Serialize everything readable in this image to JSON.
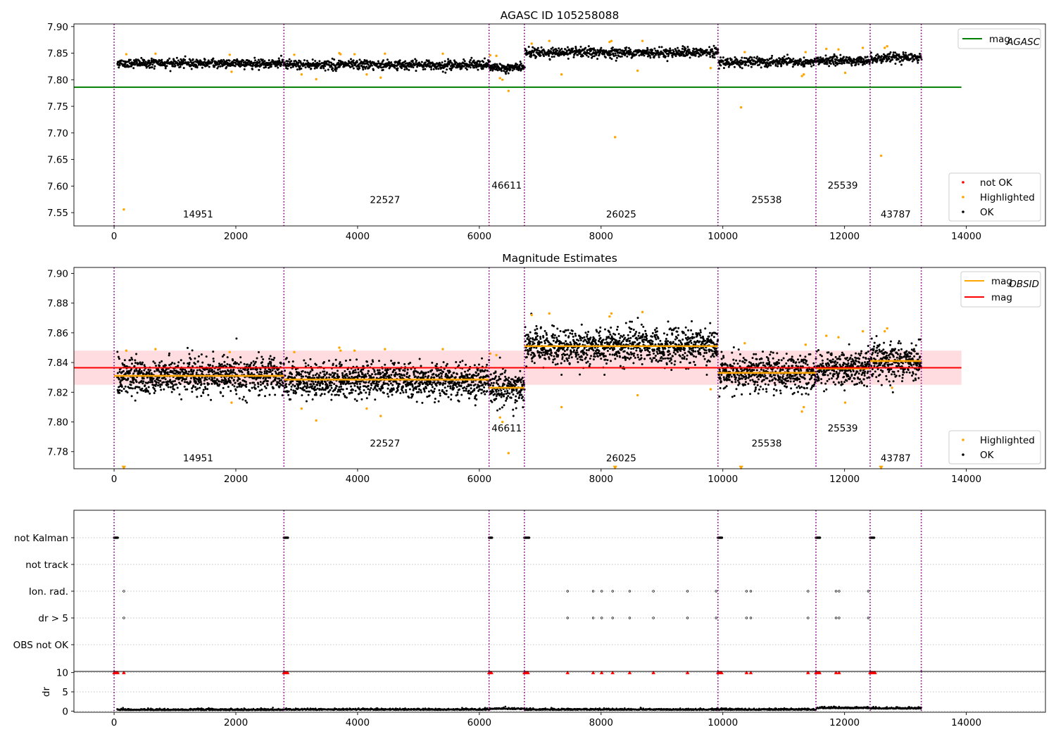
{
  "chart_data": [
    {
      "type": "scatter",
      "title": "AGASC ID 105258088",
      "xlabel": "",
      "ylabel": "",
      "xlim": [
        -660,
        15300
      ],
      "ylim": [
        7.525,
        7.905
      ],
      "xticks": [
        0,
        2000,
        4000,
        6000,
        8000,
        10000,
        12000,
        14000
      ],
      "yticks": [
        7.55,
        7.6,
        7.65,
        7.7,
        7.75,
        7.8,
        7.85,
        7.9
      ],
      "ytick_labels": [
        "7.55",
        "7.60",
        "7.65",
        "7.70",
        "7.75",
        "7.80",
        "7.85",
        "7.90"
      ],
      "obs_boundaries": [
        0,
        2790,
        6160,
        6740,
        9920,
        11530,
        12420,
        13260
      ],
      "obsids": [
        {
          "label": "14951",
          "x": 1380,
          "y": 7.541
        },
        {
          "label": "22527",
          "x": 4450,
          "y": 7.568
        },
        {
          "label": "46611",
          "x": 6450,
          "y": 7.595
        },
        {
          "label": "26025",
          "x": 8330,
          "y": 7.541
        },
        {
          "label": "25538",
          "x": 10720,
          "y": 7.568
        },
        {
          "label": "25539",
          "x": 11970,
          "y": 7.595
        },
        {
          "label": "43787",
          "x": 12840,
          "y": 7.541
        }
      ],
      "series": [
        {
          "name": "mag_AGASC",
          "kind": "line",
          "color": "#008000",
          "x": [
            -660,
            13920
          ],
          "y": [
            7.786,
            7.786
          ]
        },
        {
          "name": "OK",
          "kind": "points",
          "color": "#000000",
          "segments": [
            {
              "x0": 50,
              "x1": 2790,
              "level": 7.831
            },
            {
              "x0": 2800,
              "x1": 6160,
              "level": 7.828
            },
            {
              "x0": 6170,
              "x1": 6740,
              "level": 7.823
            },
            {
              "x0": 6750,
              "x1": 9920,
              "level": 7.851
            },
            {
              "x0": 9930,
              "x1": 11530,
              "level": 7.833
            },
            {
              "x0": 11540,
              "x1": 12420,
              "level": 7.836
            },
            {
              "x0": 12430,
              "x1": 13260,
              "level": 7.841
            }
          ]
        },
        {
          "name": "Highlighted",
          "kind": "points",
          "color": "#ffa500",
          "x": [
            160,
            200,
            680,
            1900,
            1930,
            2960,
            3080,
            3320,
            3700,
            3720,
            3950,
            4150,
            4380,
            4450,
            5400,
            6180,
            6280,
            6340,
            6380,
            6480,
            6860,
            7150,
            7350,
            8140,
            8170,
            8230,
            8600,
            8680,
            9800,
            10300,
            10360,
            11300,
            11330,
            11360,
            11700,
            11900,
            12010,
            12300,
            12600,
            12660,
            12700
          ],
          "y": [
            7.556,
            7.848,
            7.849,
            7.847,
            7.815,
            7.847,
            7.81,
            7.801,
            7.85,
            7.848,
            7.848,
            7.81,
            7.804,
            7.849,
            7.849,
            7.846,
            7.845,
            7.803,
            7.8,
            7.779,
            7.868,
            7.873,
            7.81,
            7.871,
            7.873,
            7.692,
            7.817,
            7.873,
            7.822,
            7.748,
            7.852,
            7.807,
            7.81,
            7.852,
            7.858,
            7.857,
            7.813,
            7.86,
            7.657,
            7.86,
            7.863
          ]
        },
        {
          "name": "not OK",
          "kind": "points",
          "color": "#ff0000",
          "x": [],
          "y": []
        }
      ],
      "legends": [
        {
          "entries": [
            {
              "marker": "line",
              "color": "#008000",
              "label": "mag",
              "sub": "AGASC"
            }
          ],
          "loc": "upper right"
        },
        {
          "entries": [
            {
              "marker": "dot",
              "color": "#ff0000",
              "label": "not OK"
            },
            {
              "marker": "dot",
              "color": "#ffa500",
              "label": "Highlighted"
            },
            {
              "marker": "dot",
              "color": "#000000",
              "label": "OK"
            }
          ],
          "loc": "lower right"
        }
      ]
    },
    {
      "type": "scatter",
      "title": "Magnitude Estimates",
      "xlabel": "",
      "ylabel": "",
      "xlim": [
        -660,
        15300
      ],
      "ylim": [
        7.7685,
        7.904
      ],
      "xticks": [
        0,
        2000,
        4000,
        6000,
        8000,
        10000,
        12000,
        14000
      ],
      "yticks": [
        7.78,
        7.8,
        7.82,
        7.84,
        7.86,
        7.88,
        7.9
      ],
      "ytick_labels": [
        "7.78",
        "7.80",
        "7.82",
        "7.84",
        "7.86",
        "7.88",
        "7.90"
      ],
      "obs_boundaries": [
        0,
        2790,
        6160,
        6740,
        9920,
        11530,
        12420,
        13260
      ],
      "obsids": [
        {
          "label": "14951",
          "x": 1380,
          "y": 7.7735
        },
        {
          "label": "22527",
          "x": 4450,
          "y": 7.7835
        },
        {
          "label": "46611",
          "x": 6450,
          "y": 7.7935
        },
        {
          "label": "26025",
          "x": 8330,
          "y": 7.7735
        },
        {
          "label": "25538",
          "x": 10720,
          "y": 7.7835
        },
        {
          "label": "25539",
          "x": 11970,
          "y": 7.7935
        },
        {
          "label": "43787",
          "x": 12840,
          "y": 7.7735
        }
      ],
      "mag_band": {
        "color": "#ffc0c5",
        "y0": 7.825,
        "y1": 7.848,
        "x0": -660,
        "x1": 13920
      },
      "series": [
        {
          "name": "mag",
          "kind": "line",
          "color": "#ff0000",
          "x": [
            -660,
            13920
          ],
          "y": [
            7.8365,
            7.8365
          ]
        },
        {
          "name": "mag_OBSID",
          "kind": "steps",
          "color": "#ffa500",
          "segments": [
            {
              "x0": 0,
              "x1": 2790,
              "y": 7.831
            },
            {
              "x0": 2790,
              "x1": 6160,
              "y": 7.8285
            },
            {
              "x0": 6160,
              "x1": 6740,
              "y": 7.823
            },
            {
              "x0": 6740,
              "x1": 9920,
              "y": 7.851
            },
            {
              "x0": 9920,
              "x1": 11530,
              "y": 7.833
            },
            {
              "x0": 11530,
              "x1": 12420,
              "y": 7.836
            },
            {
              "x0": 12420,
              "x1": 13260,
              "y": 7.841
            }
          ]
        },
        {
          "name": "OK",
          "kind": "points",
          "color": "#000000",
          "segments": [
            {
              "x0": 50,
              "x1": 2790,
              "level": 7.831
            },
            {
              "x0": 2800,
              "x1": 6160,
              "level": 7.828
            },
            {
              "x0": 6170,
              "x1": 6740,
              "level": 7.823
            },
            {
              "x0": 6750,
              "x1": 9920,
              "level": 7.851
            },
            {
              "x0": 9930,
              "x1": 11530,
              "level": 7.833
            },
            {
              "x0": 11540,
              "x1": 12420,
              "level": 7.836
            },
            {
              "x0": 12430,
              "x1": 13260,
              "level": 7.841
            }
          ]
        },
        {
          "name": "Highlighted",
          "kind": "points",
          "color": "#ffa500",
          "x": [
            200,
            680,
            1900,
            1930,
            2960,
            3080,
            3320,
            3700,
            3720,
            3950,
            4150,
            4380,
            4450,
            5400,
            6180,
            6280,
            6340,
            6380,
            6480,
            6860,
            7150,
            7350,
            8140,
            8170,
            8600,
            8680,
            9800,
            10360,
            11300,
            11330,
            11360,
            11700,
            11900,
            12010,
            12300,
            12660,
            12700,
            12780
          ],
          "y": [
            7.848,
            7.849,
            7.847,
            7.813,
            7.847,
            7.809,
            7.801,
            7.85,
            7.848,
            7.848,
            7.809,
            7.804,
            7.849,
            7.849,
            7.846,
            7.845,
            7.803,
            7.8,
            7.779,
            7.872,
            7.873,
            7.81,
            7.871,
            7.873,
            7.818,
            7.874,
            7.822,
            7.853,
            7.807,
            7.81,
            7.852,
            7.858,
            7.857,
            7.813,
            7.861,
            7.861,
            7.863,
            7.823
          ]
        },
        {
          "name": "below range",
          "kind": "triangles",
          "color": "#ffa500",
          "x": [
            160,
            8230,
            10300,
            12600
          ],
          "y": 7.7693
        }
      ],
      "legends": [
        {
          "entries": [
            {
              "marker": "line",
              "color": "#ffa500",
              "label": "mag",
              "sub": "OBSID"
            },
            {
              "marker": "line",
              "color": "#ff0000",
              "label": "mag",
              "sub": ""
            }
          ],
          "loc": "upper right"
        },
        {
          "entries": [
            {
              "marker": "dot",
              "color": "#ffa500",
              "label": "Highlighted"
            },
            {
              "marker": "dot",
              "color": "#000000",
              "label": "OK"
            }
          ],
          "loc": "lower right"
        }
      ]
    },
    {
      "type": "scatter",
      "title": "",
      "xlabel": "",
      "ylabel": "",
      "xlim": [
        -660,
        15300
      ],
      "categories": [
        "not Kalman",
        "not track",
        "Ion. rad.",
        "dr > 5",
        "OBS not OK"
      ],
      "obs_boundaries": [
        0,
        2790,
        6160,
        6740,
        9920,
        11530,
        12420,
        13260
      ],
      "flags": {
        "not Kalman": [
          [
            0,
            60
          ],
          [
            2790,
            2860
          ],
          [
            6160,
            6210
          ],
          [
            6740,
            6820
          ],
          [
            9920,
            9990
          ],
          [
            11530,
            11600
          ],
          [
            12420,
            12490
          ]
        ],
        "not track": [],
        "Ion. rad.": [
          160,
          7450,
          7870,
          8010,
          8190,
          8470,
          8860,
          9420,
          9890,
          10390,
          10460,
          11400,
          11860,
          11910,
          12390
        ],
        "dr > 5": [
          160,
          7450,
          7870,
          8010,
          8190,
          8470,
          8860,
          9420,
          9890,
          10390,
          10460,
          11400,
          11860,
          11910,
          12390
        ],
        "OBS not OK": []
      }
    },
    {
      "type": "scatter",
      "title": "",
      "xlabel": "",
      "ylabel": "dr",
      "xlim": [
        -660,
        15300
      ],
      "ylim": [
        -0.3,
        10.3
      ],
      "xticks": [
        0,
        2000,
        4000,
        6000,
        8000,
        10000,
        12000,
        14000
      ],
      "yticks": [
        0,
        5,
        10
      ],
      "obs_boundaries": [
        0,
        2790,
        6160,
        6740,
        9920,
        11530,
        12420,
        13260
      ],
      "series": [
        {
          "name": "dr",
          "kind": "points",
          "color": "#000000",
          "segments": [
            {
              "x0": 50,
              "x1": 2790,
              "level": 0.25
            },
            {
              "x0": 2800,
              "x1": 6160,
              "level": 0.3
            },
            {
              "x0": 6170,
              "x1": 6740,
              "level": 0.5
            },
            {
              "x0": 6750,
              "x1": 9920,
              "level": 0.3
            },
            {
              "x0": 9930,
              "x1": 11530,
              "level": 0.3
            },
            {
              "x0": 11540,
              "x1": 12420,
              "level": 0.7
            },
            {
              "x0": 12430,
              "x1": 13260,
              "level": 0.6
            }
          ]
        },
        {
          "name": "dr > 10",
          "kind": "triangles",
          "color": "#ff0000",
          "x": [
            0,
            20,
            40,
            60,
            160,
            2790,
            2810,
            2830,
            2850,
            6160,
            6180,
            6200,
            6740,
            6760,
            6780,
            6800,
            7450,
            7870,
            8010,
            8190,
            8470,
            8860,
            9420,
            9920,
            9940,
            9960,
            9980,
            10390,
            10460,
            11400,
            11530,
            11550,
            11570,
            11590,
            11860,
            11910,
            12420,
            12440,
            12460,
            12480,
            12500
          ],
          "y": 10
        }
      ]
    }
  ]
}
